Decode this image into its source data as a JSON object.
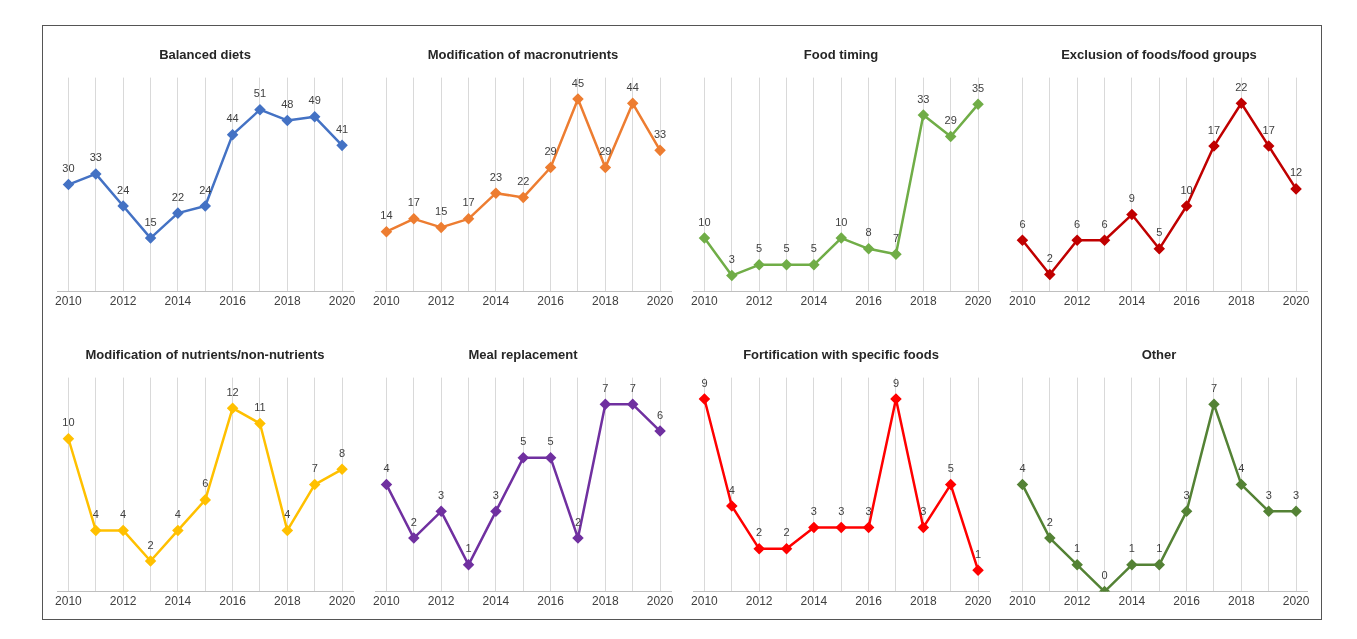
{
  "chart_data": [
    {
      "type": "line",
      "title": "Balanced diets",
      "x": [
        2010,
        2011,
        2012,
        2013,
        2014,
        2015,
        2016,
        2017,
        2018,
        2019,
        2020
      ],
      "series": [
        {
          "color": "#4472c4",
          "values": [
            30,
            33,
            24,
            15,
            22,
            24,
            44,
            51,
            48,
            49,
            41
          ]
        }
      ],
      "xlim": [
        2009.6,
        2020.4
      ],
      "xticks": [
        2010,
        {
          "value": 2011,
          "label": null
        },
        2012,
        {
          "value": 2013,
          "label": null
        },
        2014,
        {
          "value": 2015,
          "label": null
        },
        2016,
        {
          "value": 2017,
          "label": null
        },
        2018,
        {
          "value": 2019,
          "label": null
        },
        2020
      ],
      "tick_labels": "x",
      "grid": "x",
      "legend": false,
      "marker": "diamond",
      "data_labels": true
    },
    {
      "type": "line",
      "title": "Modification of macronutrients",
      "x": [
        2010,
        2011,
        2012,
        2013,
        2014,
        2015,
        2016,
        2017,
        2018,
        2019,
        2020
      ],
      "series": [
        {
          "color": "#ed7d31",
          "values": [
            14,
            17,
            15,
            17,
            23,
            22,
            29,
            45,
            29,
            44,
            33
          ]
        }
      ],
      "xlim": [
        2009.6,
        2020.4
      ],
      "xticks": [
        2010,
        {
          "value": 2011,
          "label": null
        },
        2012,
        {
          "value": 2013,
          "label": null
        },
        2014,
        {
          "value": 2015,
          "label": null
        },
        2016,
        {
          "value": 2017,
          "label": null
        },
        2018,
        {
          "value": 2019,
          "label": null
        },
        2020
      ],
      "tick_labels": "x",
      "grid": "x",
      "legend": false,
      "marker": "diamond",
      "data_labels": true
    },
    {
      "type": "line",
      "title": "Food timing",
      "x": [
        2010,
        2011,
        2012,
        2013,
        2014,
        2015,
        2016,
        2017,
        2018,
        2019,
        2020
      ],
      "series": [
        {
          "color": "#70ad47",
          "values": [
            10,
            3,
            5,
            5,
            5,
            10,
            8,
            7,
            33,
            29,
            35
          ]
        }
      ],
      "xlim": [
        2009.6,
        2020.4
      ],
      "xticks": [
        2010,
        {
          "value": 2011,
          "label": null
        },
        2012,
        {
          "value": 2013,
          "label": null
        },
        2014,
        {
          "value": 2015,
          "label": null
        },
        2016,
        {
          "value": 2017,
          "label": null
        },
        2018,
        {
          "value": 2019,
          "label": null
        },
        2020
      ],
      "tick_labels": "x",
      "grid": "x",
      "legend": false,
      "marker": "diamond",
      "data_labels": true
    },
    {
      "type": "line",
      "title": "Exclusion of foods/food groups",
      "x": [
        2010,
        2011,
        2012,
        2013,
        2014,
        2015,
        2016,
        2017,
        2018,
        2019,
        2020
      ],
      "series": [
        {
          "color": "#c00000",
          "values": [
            6,
            2,
            6,
            6,
            9,
            5,
            10,
            17,
            22,
            17,
            12
          ]
        }
      ],
      "xlim": [
        2009.6,
        2020.4
      ],
      "xticks": [
        2010,
        {
          "value": 2011,
          "label": null
        },
        2012,
        {
          "value": 2013,
          "label": null
        },
        2014,
        {
          "value": 2015,
          "label": null
        },
        2016,
        {
          "value": 2017,
          "label": null
        },
        2018,
        {
          "value": 2019,
          "label": null
        },
        2020
      ],
      "tick_labels": "x",
      "grid": "x",
      "legend": false,
      "marker": "diamond",
      "data_labels": true
    },
    {
      "type": "line",
      "title": "Modification of nutrients/non-nutrients",
      "x": [
        2010,
        2011,
        2012,
        2013,
        2014,
        2015,
        2016,
        2017,
        2018,
        2019,
        2020
      ],
      "series": [
        {
          "color": "#ffc000",
          "values": [
            10,
            4,
            4,
            2,
            4,
            6,
            12,
            11,
            4,
            7,
            8
          ]
        }
      ],
      "xlim": [
        2009.6,
        2020.4
      ],
      "xticks": [
        2010,
        {
          "value": 2011,
          "label": null
        },
        2012,
        {
          "value": 2013,
          "label": null
        },
        2014,
        {
          "value": 2015,
          "label": null
        },
        2016,
        {
          "value": 2017,
          "label": null
        },
        2018,
        {
          "value": 2019,
          "label": null
        },
        2020
      ],
      "tick_labels": "x",
      "grid": "x",
      "legend": false,
      "marker": "diamond",
      "data_labels": true
    },
    {
      "type": "line",
      "title": "Meal replacement",
      "x": [
        2010,
        2011,
        2012,
        2013,
        2014,
        2015,
        2016,
        2017,
        2018,
        2019,
        2020
      ],
      "series": [
        {
          "color": "#7030a0",
          "values": [
            4,
            2,
            3,
            1,
            3,
            5,
            5,
            2,
            7,
            7,
            6
          ]
        }
      ],
      "xlim": [
        2009.6,
        2020.4
      ],
      "xticks": [
        2010,
        {
          "value": 2011,
          "label": null
        },
        2012,
        {
          "value": 2013,
          "label": null
        },
        2014,
        {
          "value": 2015,
          "label": null
        },
        2016,
        {
          "value": 2017,
          "label": null
        },
        2018,
        {
          "value": 2019,
          "label": null
        },
        2020
      ],
      "tick_labels": "x",
      "grid": "x",
      "legend": false,
      "marker": "diamond",
      "data_labels": true
    },
    {
      "type": "line",
      "title": "Fortification with specific foods",
      "x": [
        2010,
        2011,
        2012,
        2013,
        2014,
        2015,
        2016,
        2017,
        2018,
        2019,
        2020
      ],
      "series": [
        {
          "color": "#ff0000",
          "values": [
            9,
            4,
            2,
            2,
            3,
            3,
            3,
            9,
            3,
            5,
            1
          ]
        }
      ],
      "xlim": [
        2009.6,
        2020.4
      ],
      "xticks": [
        2010,
        {
          "value": 2011,
          "label": null
        },
        2012,
        {
          "value": 2013,
          "label": null
        },
        2014,
        {
          "value": 2015,
          "label": null
        },
        2016,
        {
          "value": 2017,
          "label": null
        },
        2018,
        {
          "value": 2019,
          "label": null
        },
        2020
      ],
      "tick_labels": "x",
      "grid": "x",
      "legend": false,
      "marker": "diamond",
      "data_labels": true
    },
    {
      "type": "line",
      "title": "Other",
      "x": [
        2010,
        2011,
        2012,
        2013,
        2014,
        2015,
        2016,
        2017,
        2018,
        2019,
        2020
      ],
      "series": [
        {
          "color": "#548235",
          "values": [
            4,
            2,
            1,
            0,
            1,
            1,
            3,
            7,
            4,
            3,
            3
          ]
        }
      ],
      "xlim": [
        2009.6,
        2020.4
      ],
      "xticks": [
        2010,
        {
          "value": 2011,
          "label": null
        },
        2012,
        {
          "value": 2013,
          "label": null
        },
        2014,
        {
          "value": 2015,
          "label": null
        },
        2016,
        {
          "value": 2017,
          "label": null
        },
        2018,
        {
          "value": 2019,
          "label": null
        },
        2020
      ],
      "tick_labels": "x",
      "grid": "x",
      "legend": false,
      "marker": "diamond",
      "data_labels": true
    }
  ]
}
